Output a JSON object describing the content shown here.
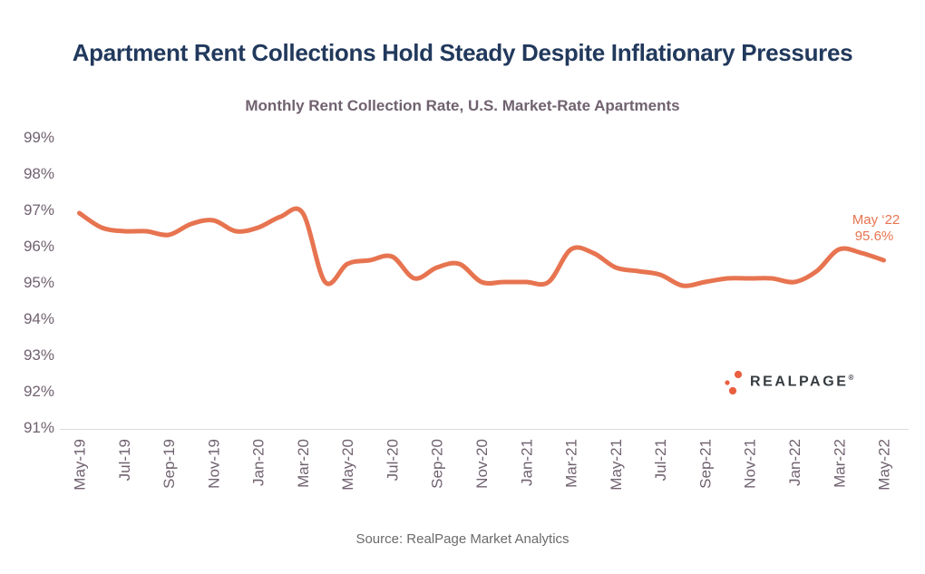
{
  "header": {
    "title": "Apartment Rent Collections Hold Steady Despite Inflationary Pressures",
    "subtitle": "Monthly Rent Collection Rate, U.S. Market-Rate Apartments"
  },
  "chart_data": {
    "type": "line",
    "title": "Monthly Rent Collection Rate, U.S. Market-Rate Apartments",
    "x": [
      "May-19",
      "Jun-19",
      "Jul-19",
      "Aug-19",
      "Sep-19",
      "Oct-19",
      "Nov-19",
      "Dec-19",
      "Jan-20",
      "Feb-20",
      "Mar-20",
      "Apr-20",
      "May-20",
      "Jun-20",
      "Jul-20",
      "Aug-20",
      "Sep-20",
      "Oct-20",
      "Nov-20",
      "Dec-20",
      "Jan-21",
      "Feb-21",
      "Mar-21",
      "Apr-21",
      "May-21",
      "Jun-21",
      "Jul-21",
      "Aug-21",
      "Sep-21",
      "Oct-21",
      "Nov-21",
      "Dec-21",
      "Jan-22",
      "Feb-22",
      "Mar-22",
      "Apr-22",
      "May-22"
    ],
    "series": [
      {
        "name": "Monthly rent collection rate",
        "values": [
          96.9,
          96.5,
          96.4,
          96.4,
          96.3,
          96.6,
          96.7,
          96.4,
          96.5,
          96.8,
          96.9,
          95.0,
          95.5,
          95.6,
          95.7,
          95.1,
          95.4,
          95.5,
          95.0,
          95.0,
          95.0,
          95.0,
          95.9,
          95.8,
          95.4,
          95.3,
          95.2,
          94.9,
          95.0,
          95.1,
          95.1,
          95.1,
          95.0,
          95.3,
          95.9,
          95.8,
          95.6
        ]
      }
    ],
    "x_tick_labels": [
      "May-19",
      "Jul-19",
      "Sep-19",
      "Nov-19",
      "Jan-20",
      "Mar-20",
      "May-20",
      "Jul-20",
      "Sep-20",
      "Nov-20",
      "Jan-21",
      "Mar-21",
      "May-21",
      "Jul-21",
      "Sep-21",
      "Nov-21",
      "Jan-22",
      "Mar-22",
      "May-22"
    ],
    "y_tick_labels": [
      "99%",
      "98%",
      "97%",
      "96%",
      "95%",
      "94%",
      "93%",
      "92%",
      "91%"
    ],
    "y_tick_values": [
      99,
      98,
      97,
      96,
      95,
      94,
      93,
      92,
      91
    ],
    "ylim": [
      91,
      99
    ],
    "grid": false,
    "legend": false,
    "annotation": {
      "label": "May ‘22",
      "value": "95.6%"
    },
    "line_color": "#E77450"
  },
  "branding": {
    "logo_text": "REALPAGE",
    "logo_reg": "®",
    "dots_color": "#EA5F40"
  },
  "footer": {
    "source": "Source: RealPage Market Analytics"
  },
  "colors": {
    "accent": "#E77450",
    "title": "#21395C",
    "subtitle": "#70626F",
    "axis_label": "#70626F",
    "axis_line": "#DBDBDB",
    "source_text": "#6B6B6B"
  }
}
